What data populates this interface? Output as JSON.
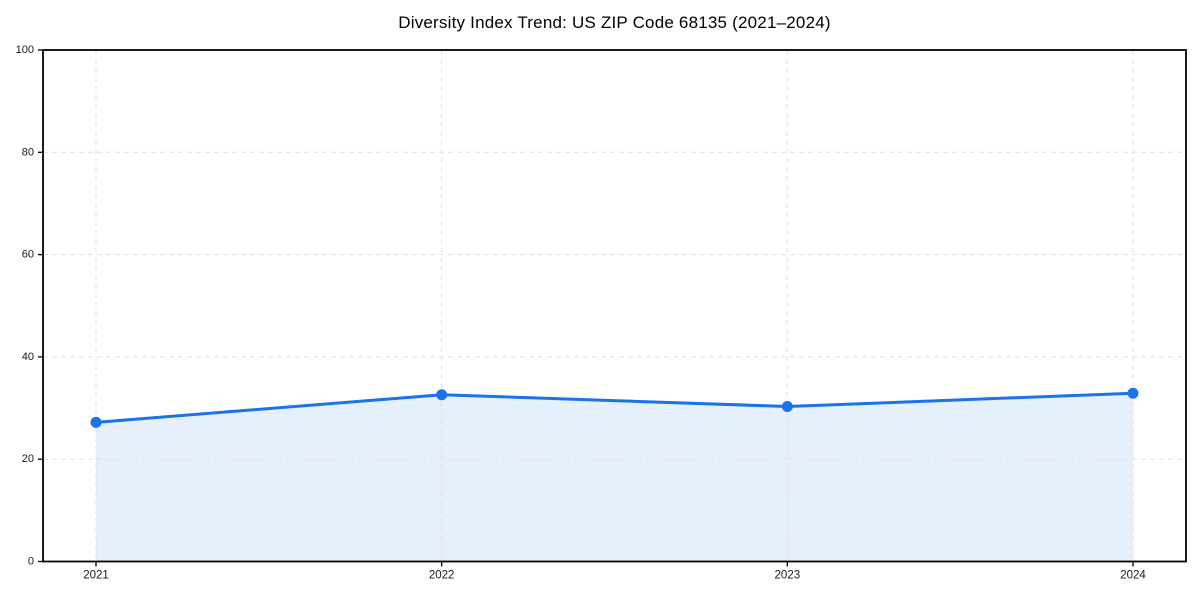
{
  "chart_data": {
    "type": "line",
    "title": "Diversity Index Trend: US ZIP Code 68135 (2021–2024)",
    "categories": [
      "2021",
      "2022",
      "2023",
      "2024"
    ],
    "series": [
      {
        "name": "Diversity Index",
        "values": [
          27.2,
          32.6,
          30.3,
          32.9
        ]
      }
    ],
    "xlabel": "",
    "ylabel": "",
    "ylim": [
      0,
      100
    ],
    "yticks": [
      0,
      20,
      40,
      60,
      80,
      100
    ],
    "grid": true,
    "grid_style": "dashed",
    "legend": false,
    "area_fill_under_line": true,
    "colors": {
      "line": "#1a73e8",
      "marker": "#1a73e8",
      "area_fill": "rgba(26,115,232,0.11)",
      "grid": "#e0e0e0",
      "axis": "#000000",
      "tick_label": "#1a1a1a",
      "title": "#000000",
      "background": "#ffffff"
    }
  }
}
